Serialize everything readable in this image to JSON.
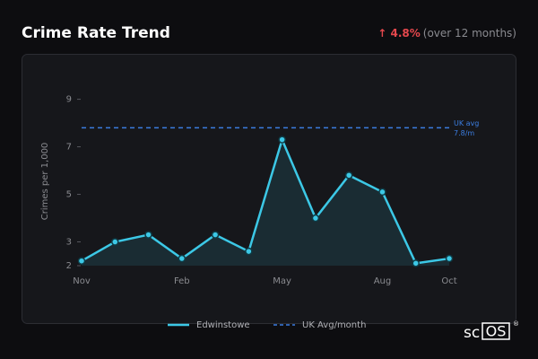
{
  "chart_data": {
    "type": "line",
    "title": "Crime Rate Trend",
    "change": "↑ 4.8%",
    "change_note": "(over 12 months)",
    "y_label": "Crimes per 1,000",
    "categories": [
      "Nov",
      null,
      null,
      "Feb",
      null,
      null,
      "May",
      null,
      null,
      "Aug",
      null,
      "Oct"
    ],
    "series": [
      {
        "name": "Edwinstowe",
        "color": "#3cc8e6",
        "values": [
          2.2,
          3.0,
          3.3,
          2.3,
          3.3,
          2.6,
          7.3,
          4.0,
          5.8,
          5.1,
          2.1,
          2.3
        ]
      }
    ],
    "reference": {
      "name": "UK Avg/month",
      "value": 7.8,
      "color": "#3b7de0",
      "label": [
        "UK avg",
        "7.8/m"
      ]
    },
    "ylim": [
      2,
      9.4
    ],
    "yticks": [
      2,
      3,
      5,
      7,
      9
    ]
  },
  "brand": {
    "name": "sc",
    "box": "OS",
    "mark": "®"
  }
}
